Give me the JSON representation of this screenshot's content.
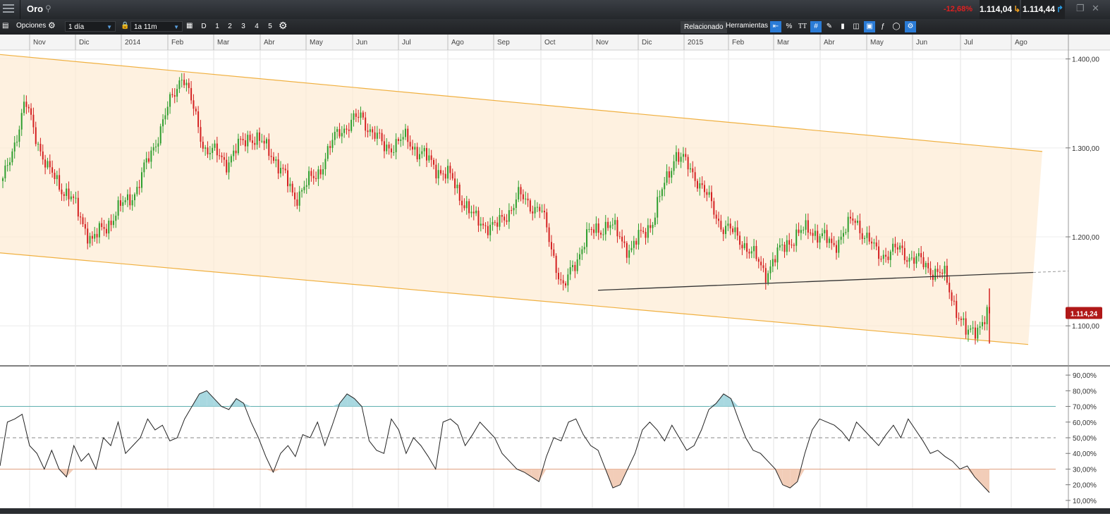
{
  "header": {
    "title": "Oro",
    "change_pct": "-12,68%",
    "sell_price": "1.114,04",
    "buy_price": "1.114,44"
  },
  "toolbar": {
    "options_label": "Opciones",
    "interval": "1 día",
    "range": "1a 11m",
    "period_buttons": [
      "D",
      "1",
      "2",
      "3",
      "4",
      "5"
    ],
    "related_label": "Relacionado",
    "tools_label": "Herramientas",
    "percent_label": "%",
    "text_label": "TT"
  },
  "chart_data": [
    {
      "type": "candlestick",
      "instrument": "Oro",
      "x_labels": [
        "Nov",
        "Dic",
        "2014",
        "Feb",
        "Mar",
        "Abr",
        "May",
        "Jun",
        "Jul",
        "Ago",
        "Sep",
        "Oct",
        "Nov",
        "Dic",
        "2015",
        "Feb",
        "Mar",
        "Abr",
        "May",
        "Jun",
        "Jul",
        "Ago"
      ],
      "y_ticks": [
        "1.400,00",
        "1.300,00",
        "1.200,00",
        "1.100,00"
      ],
      "ylim": [
        1055,
        1410
      ],
      "last_price_label": "1.114,24",
      "close_path": [
        [
          "Oct 2013",
          1260
        ],
        [
          "Nov 2013",
          1350
        ],
        [
          "Nov 2013",
          1275
        ],
        [
          "Dic 2013",
          1245
        ],
        [
          "Dic 2013",
          1195
        ],
        [
          "Ene 2014",
          1225
        ],
        [
          "Ene 2014",
          1255
        ],
        [
          "Feb 2014",
          1320
        ],
        [
          "Mar 2014",
          1385
        ],
        [
          "Mar 2014",
          1300
        ],
        [
          "Abr 2014",
          1285
        ],
        [
          "Abr 2014",
          1315
        ],
        [
          "May 2014",
          1295
        ],
        [
          "Jun 2014",
          1245
        ],
        [
          "Jun 2014",
          1270
        ],
        [
          "Jul 2014",
          1320
        ],
        [
          "Jul 2014",
          1335
        ],
        [
          "Jul 2014",
          1300
        ],
        [
          "Ago 2014",
          1310
        ],
        [
          "Ago 2014",
          1285
        ],
        [
          "Sep 2014",
          1265
        ],
        [
          "Sep 2014",
          1220
        ],
        [
          "Oct 2014",
          1210
        ],
        [
          "Oct 2014",
          1245
        ],
        [
          "Oct 2014",
          1230
        ],
        [
          "Nov 2014",
          1140
        ],
        [
          "Nov 2014",
          1200
        ],
        [
          "Dic 2014",
          1215
        ],
        [
          "Dic 2014",
          1185
        ],
        [
          "Ene 2015",
          1220
        ],
        [
          "Ene 2015",
          1295
        ],
        [
          "Feb 2015",
          1265
        ],
        [
          "Feb 2015",
          1215
        ],
        [
          "Mar 2015",
          1195
        ],
        [
          "Mar 2015",
          1160
        ],
        [
          "Abr 2015",
          1195
        ],
        [
          "Abr 2015",
          1210
        ],
        [
          "May 2015",
          1190
        ],
        [
          "May 2015",
          1220
        ],
        [
          "Jun 2015",
          1180
        ],
        [
          "Jun 2015",
          1185
        ],
        [
          "Jul 2015",
          1170
        ],
        [
          "Jul 2015",
          1155
        ],
        [
          "Jul 2015",
          1088
        ],
        [
          "Jul 2015",
          1114
        ]
      ]
    },
    {
      "type": "line",
      "indicator": "oscillator",
      "y_ticks": [
        "90,00%",
        "80,00%",
        "70,00%",
        "60,00%",
        "50,00%",
        "40,00%",
        "30,00%",
        "20,00%",
        "10,00%"
      ],
      "ylim": [
        5,
        95
      ],
      "levels": [
        70,
        50,
        30
      ],
      "values": [
        32,
        60,
        62,
        65,
        45,
        40,
        30,
        42,
        30,
        25,
        45,
        35,
        40,
        30,
        50,
        45,
        60,
        40,
        45,
        50,
        62,
        55,
        58,
        48,
        50,
        62,
        70,
        78,
        80,
        75,
        70,
        68,
        75,
        72,
        60,
        50,
        38,
        28,
        40,
        45,
        38,
        52,
        50,
        60,
        45,
        58,
        72,
        78,
        75,
        70,
        48,
        42,
        40,
        62,
        55,
        40,
        50,
        45,
        38,
        30,
        60,
        62,
        58,
        45,
        52,
        60,
        55,
        50,
        40,
        35,
        30,
        28,
        25,
        22,
        38,
        50,
        48,
        60,
        62,
        52,
        45,
        42,
        30,
        18,
        20,
        30,
        40,
        55,
        60,
        55,
        48,
        58,
        50,
        42,
        45,
        55,
        68,
        72,
        78,
        75,
        62,
        50,
        42,
        40,
        35,
        30,
        20,
        18,
        22,
        40,
        55,
        62,
        60,
        58,
        54,
        48,
        60,
        55,
        50,
        45,
        52,
        58,
        50,
        62,
        55,
        48,
        40,
        42,
        38,
        35,
        30,
        32,
        25,
        20,
        15
      ]
    }
  ]
}
